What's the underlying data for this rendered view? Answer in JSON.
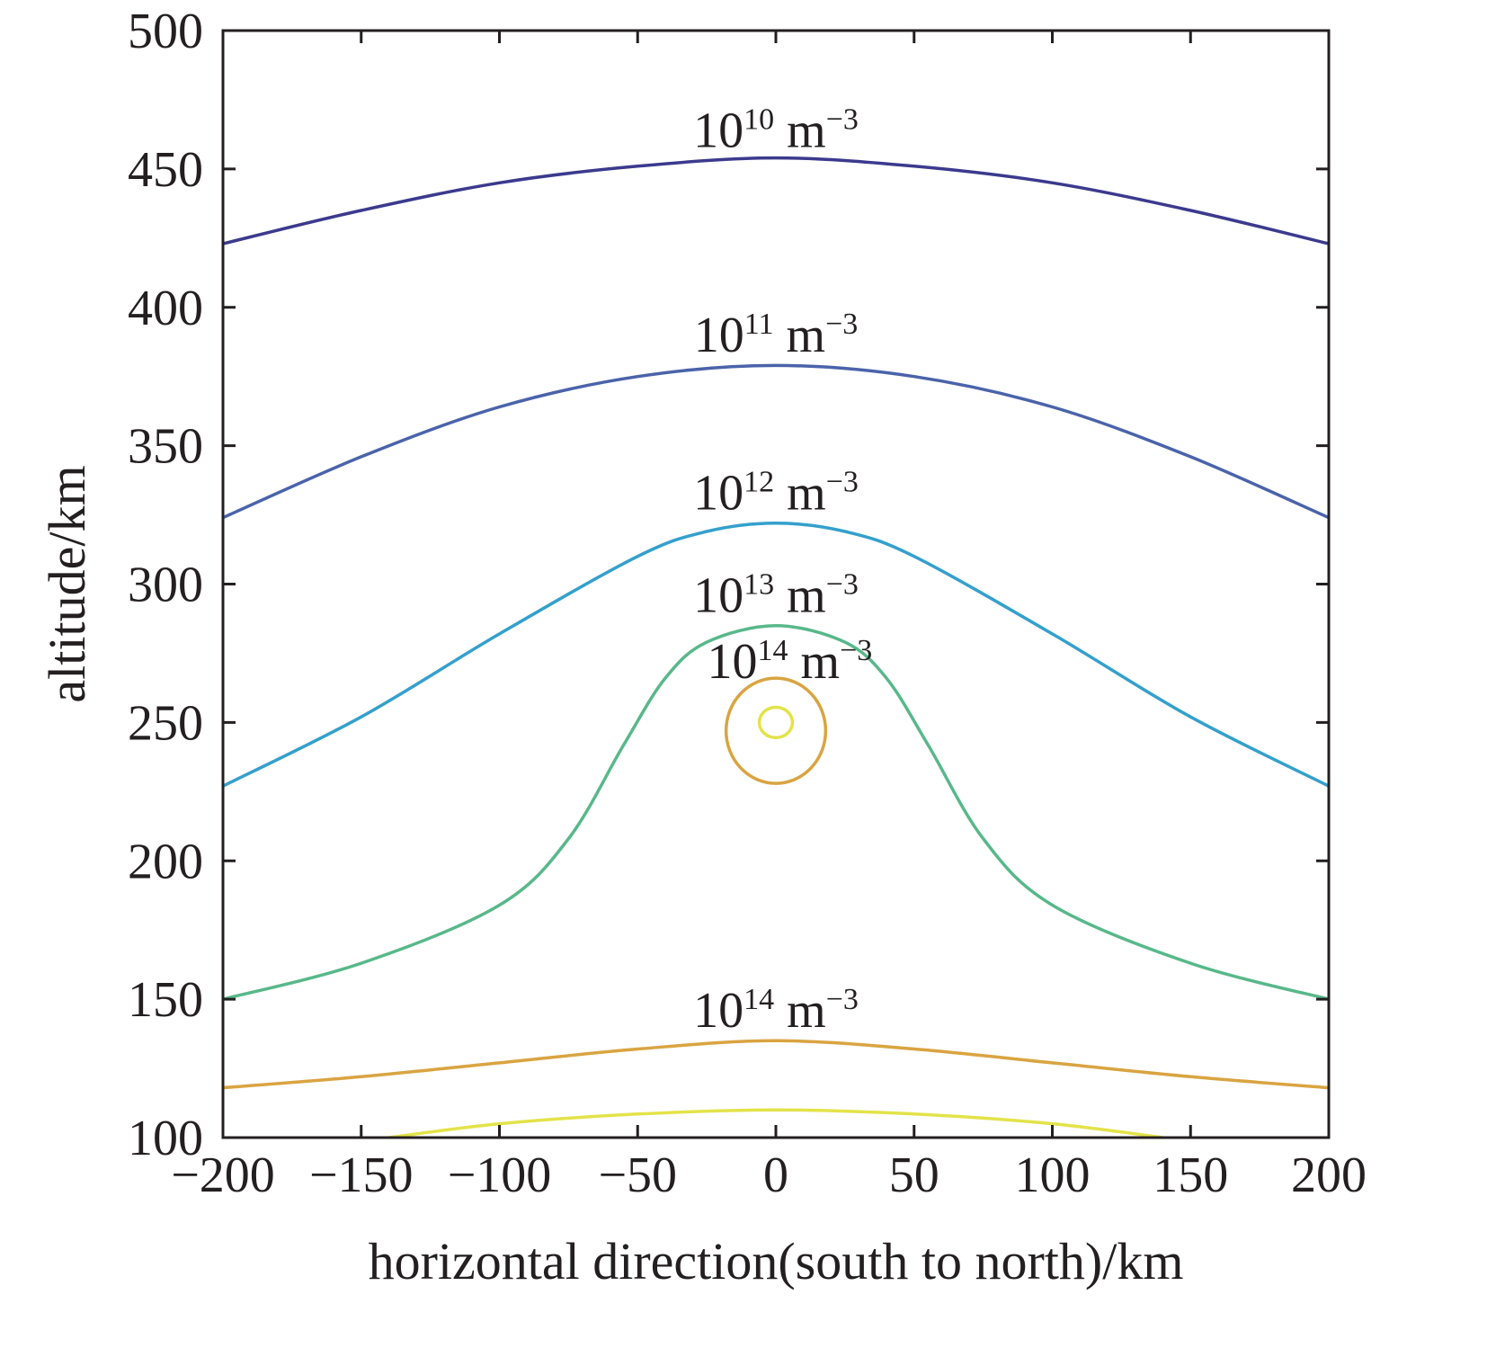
{
  "chart_data": {
    "type": "contour",
    "xlabel": "horizontal direction(south to north)/km",
    "ylabel": "altitude/km",
    "xlim": [
      -200,
      200
    ],
    "ylim": [
      100,
      500
    ],
    "xticks": [
      "−200",
      "−150",
      "−100",
      "−50",
      "0",
      "50",
      "100",
      "150",
      "200"
    ],
    "xtick_values": [
      -200,
      -150,
      -100,
      -50,
      0,
      50,
      100,
      150,
      200
    ],
    "yticks": [
      "100",
      "150",
      "200",
      "250",
      "300",
      "350",
      "400",
      "450",
      "500"
    ],
    "ytick_values": [
      100,
      150,
      200,
      250,
      300,
      350,
      400,
      450,
      500
    ],
    "grid": false,
    "series": [
      {
        "label": "10^10 m^-3",
        "label_base": "10",
        "label_exp": "10",
        "label_unit": " m",
        "label_unit_exp": "−3",
        "color": "#3b3a8e",
        "points": [
          [
            -200,
            423
          ],
          [
            -150,
            435
          ],
          [
            -100,
            445
          ],
          [
            -50,
            451
          ],
          [
            0,
            454
          ],
          [
            50,
            451
          ],
          [
            100,
            445
          ],
          [
            150,
            435
          ],
          [
            200,
            423
          ]
        ]
      },
      {
        "label": "10^11 m^-3",
        "label_base": "10",
        "label_exp": "11",
        "label_unit": " m",
        "label_unit_exp": "−3",
        "color": "#4a63aa",
        "points": [
          [
            -200,
            324
          ],
          [
            -150,
            346
          ],
          [
            -100,
            364
          ],
          [
            -50,
            375
          ],
          [
            0,
            379
          ],
          [
            50,
            375
          ],
          [
            100,
            364
          ],
          [
            150,
            346
          ],
          [
            200,
            324
          ]
        ]
      },
      {
        "label": "10^12 m^-3",
        "label_base": "10",
        "label_exp": "12",
        "label_unit": " m",
        "label_unit_exp": "−3",
        "color": "#34a0cc",
        "points": [
          [
            -200,
            227
          ],
          [
            -150,
            252
          ],
          [
            -100,
            282
          ],
          [
            -50,
            310
          ],
          [
            -25,
            319
          ],
          [
            0,
            322
          ],
          [
            25,
            319
          ],
          [
            50,
            310
          ],
          [
            100,
            282
          ],
          [
            150,
            252
          ],
          [
            200,
            227
          ]
        ]
      },
      {
        "label": "10^13 m^-3",
        "label_base": "10",
        "label_exp": "13",
        "label_unit": " m",
        "label_unit_exp": "−3",
        "color": "#58b88a",
        "points": [
          [
            -200,
            150
          ],
          [
            -150,
            163
          ],
          [
            -100,
            184
          ],
          [
            -75,
            208
          ],
          [
            -55,
            242
          ],
          [
            -40,
            266
          ],
          [
            -25,
            279
          ],
          [
            0,
            285
          ],
          [
            25,
            279
          ],
          [
            40,
            266
          ],
          [
            55,
            242
          ],
          [
            75,
            208
          ],
          [
            100,
            184
          ],
          [
            150,
            163
          ],
          [
            200,
            150
          ]
        ]
      },
      {
        "label": "10^14 m^-3",
        "label_base": "10",
        "label_exp": "14",
        "label_unit": " m",
        "label_unit_exp": "−3",
        "color": "#d9a441",
        "points": [
          [
            -200,
            118
          ],
          [
            -150,
            122
          ],
          [
            -100,
            127
          ],
          [
            -50,
            132
          ],
          [
            0,
            135
          ],
          [
            50,
            132
          ],
          [
            100,
            127
          ],
          [
            150,
            122
          ],
          [
            200,
            118
          ]
        ]
      },
      {
        "label": "",
        "color": "#e3e34a",
        "points": [
          [
            -140,
            100
          ],
          [
            -100,
            105
          ],
          [
            -50,
            108.5
          ],
          [
            0,
            110
          ],
          [
            50,
            108.5
          ],
          [
            100,
            105
          ],
          [
            140,
            100
          ]
        ]
      },
      {
        "label": "10^14 m^-3",
        "label_base": "10",
        "label_exp": "14",
        "label_unit": " m",
        "label_unit_exp": "−3",
        "color": "#d9a441",
        "closed": true,
        "center": [
          0,
          247
        ],
        "radius_x": 18,
        "radius_y": 19
      },
      {
        "label": "",
        "color": "#e3e34a",
        "closed": true,
        "center": [
          0,
          250
        ],
        "radius_x": 6,
        "radius_y": 5.5
      }
    ],
    "annotations": [
      {
        "series_index": 0,
        "base": "10",
        "exp": "10",
        "unit": " m",
        "unit_exp": "−3",
        "x": 0,
        "y": 458
      },
      {
        "series_index": 1,
        "base": "10",
        "exp": "11",
        "unit": " m",
        "unit_exp": "−3",
        "x": 0,
        "y": 384
      },
      {
        "series_index": 2,
        "base": "10",
        "exp": "12",
        "unit": " m",
        "unit_exp": "−3",
        "x": 0,
        "y": 327
      },
      {
        "series_index": 3,
        "base": "10",
        "exp": "13",
        "unit": " m",
        "unit_exp": "−3",
        "x": 0,
        "y": 290
      },
      {
        "series_index": 6,
        "base": "10",
        "exp": "14",
        "unit": " m",
        "unit_exp": "−3",
        "x": 5,
        "y": 266
      },
      {
        "series_index": 4,
        "base": "10",
        "exp": "14",
        "unit": " m",
        "unit_exp": "−3",
        "x": 0,
        "y": 140
      }
    ]
  }
}
